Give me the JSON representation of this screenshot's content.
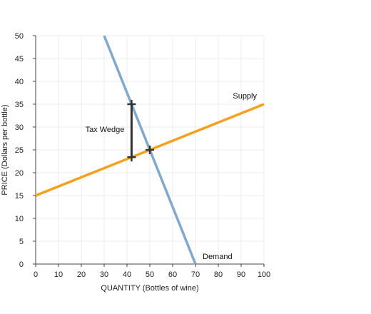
{
  "chart_data": {
    "type": "line",
    "title": "",
    "xlabel": "QUANTITY (Bottles of wine)",
    "ylabel": "PRICE (Dollars per bottle)",
    "xlim": [
      0,
      100
    ],
    "ylim": [
      0,
      50
    ],
    "xticks": [
      0,
      10,
      20,
      30,
      40,
      50,
      60,
      70,
      80,
      90,
      100
    ],
    "yticks": [
      0,
      5,
      10,
      15,
      20,
      25,
      30,
      35,
      40,
      45,
      50
    ],
    "grid": true,
    "series": [
      {
        "name": "Supply",
        "color": "#F7A01D",
        "points": [
          [
            0,
            15
          ],
          [
            100,
            35
          ]
        ]
      },
      {
        "name": "Demand",
        "color": "#7FA9CE",
        "points": [
          [
            30,
            50
          ],
          [
            70,
            0
          ]
        ]
      }
    ],
    "equilibrium": {
      "x": 50,
      "y": 25
    },
    "tax_wedge": {
      "label": "Tax Wedge",
      "x": 42,
      "y_low": 23.4,
      "y_high": 35
    },
    "marker_color": "#333333"
  }
}
